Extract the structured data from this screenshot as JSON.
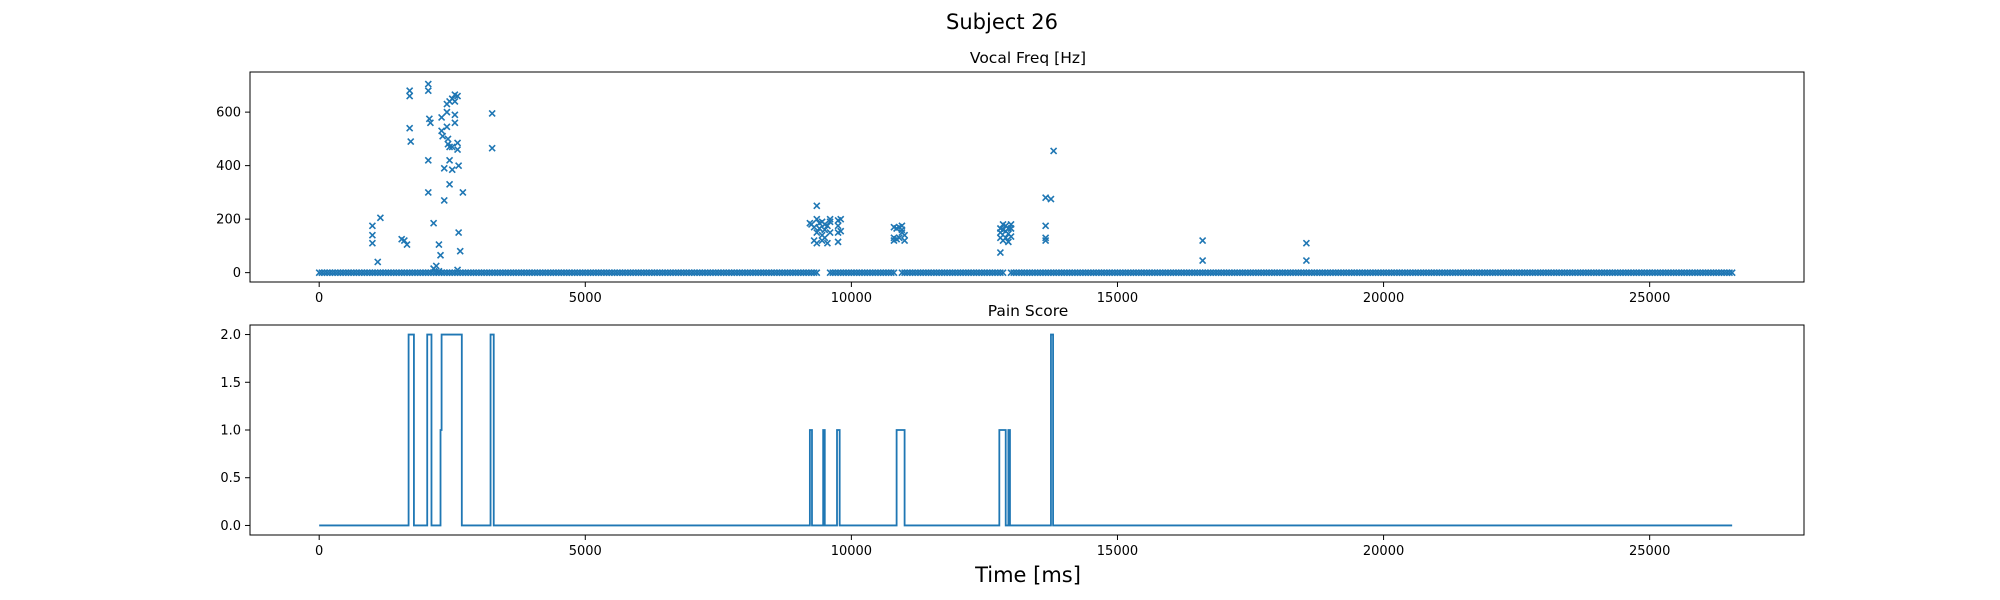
{
  "figure": {
    "suptitle": "Subject 26",
    "xlabel": "Time [ms]"
  },
  "colors": {
    "series": "#1f77b4",
    "axes": "#000000",
    "background": "#ffffff"
  },
  "chart_data": [
    {
      "type": "scatter",
      "title": "Vocal Freq [Hz]",
      "marker": "x",
      "xlim": [
        -1300,
        27900
      ],
      "ylim": [
        -35,
        750
      ],
      "xticks": [
        0,
        5000,
        10000,
        15000,
        20000,
        25000
      ],
      "xticklabels": [
        "0",
        "5000",
        "10000",
        "15000",
        "20000",
        "25000"
      ],
      "yticks": [
        0,
        200,
        400,
        600
      ],
      "yticklabels": [
        "0",
        "200",
        "400",
        "600"
      ],
      "grid": false,
      "baseline": {
        "y": 0,
        "x_start": 0,
        "x_end": 26550,
        "step": 50,
        "gaps": [
          [
            9380,
            9560
          ],
          [
            10820,
            10900
          ],
          [
            12860,
            12950
          ]
        ]
      },
      "points": [
        [
          1000,
          175
        ],
        [
          1000,
          140
        ],
        [
          1000,
          110
        ],
        [
          1100,
          40
        ],
        [
          1150,
          205
        ],
        [
          1550,
          125
        ],
        [
          1600,
          120
        ],
        [
          1650,
          105
        ],
        [
          1700,
          680
        ],
        [
          1700,
          660
        ],
        [
          1700,
          540
        ],
        [
          1720,
          490
        ],
        [
          2050,
          705
        ],
        [
          2050,
          680
        ],
        [
          2070,
          575
        ],
        [
          2090,
          560
        ],
        [
          2050,
          420
        ],
        [
          2050,
          300
        ],
        [
          2150,
          185
        ],
        [
          2200,
          25
        ],
        [
          2150,
          15
        ],
        [
          2250,
          105
        ],
        [
          2280,
          65
        ],
        [
          2250,
          5
        ],
        [
          2300,
          580
        ],
        [
          2300,
          530
        ],
        [
          2320,
          510
        ],
        [
          2350,
          390
        ],
        [
          2350,
          270
        ],
        [
          2400,
          630
        ],
        [
          2400,
          600
        ],
        [
          2400,
          545
        ],
        [
          2420,
          500
        ],
        [
          2420,
          480
        ],
        [
          2450,
          640
        ],
        [
          2450,
          470
        ],
        [
          2450,
          420
        ],
        [
          2450,
          330
        ],
        [
          2500,
          650
        ],
        [
          2500,
          470
        ],
        [
          2500,
          385
        ],
        [
          2550,
          665
        ],
        [
          2550,
          640
        ],
        [
          2550,
          590
        ],
        [
          2550,
          560
        ],
        [
          2600,
          660
        ],
        [
          2600,
          485
        ],
        [
          2600,
          460
        ],
        [
          2620,
          400
        ],
        [
          2620,
          150
        ],
        [
          2650,
          80
        ],
        [
          2700,
          300
        ],
        [
          2600,
          10
        ],
        [
          3250,
          595
        ],
        [
          3250,
          465
        ],
        [
          9220,
          185
        ],
        [
          9250,
          180
        ],
        [
          9300,
          170
        ],
        [
          9300,
          120
        ],
        [
          9350,
          250
        ],
        [
          9350,
          200
        ],
        [
          9350,
          150
        ],
        [
          9350,
          110
        ],
        [
          9400,
          185
        ],
        [
          9400,
          165
        ],
        [
          9450,
          190
        ],
        [
          9450,
          140
        ],
        [
          9450,
          120
        ],
        [
          9500,
          180
        ],
        [
          9500,
          160
        ],
        [
          9500,
          130
        ],
        [
          9550,
          175
        ],
        [
          9550,
          110
        ],
        [
          9600,
          200
        ],
        [
          9600,
          190
        ],
        [
          9600,
          150
        ],
        [
          9750,
          195
        ],
        [
          9750,
          175
        ],
        [
          9750,
          150
        ],
        [
          9750,
          115
        ],
        [
          9800,
          200
        ],
        [
          9800,
          155
        ],
        [
          10800,
          170
        ],
        [
          10800,
          130
        ],
        [
          10800,
          120
        ],
        [
          10850,
          165
        ],
        [
          10850,
          125
        ],
        [
          10900,
          170
        ],
        [
          10900,
          130
        ],
        [
          10950,
          175
        ],
        [
          10950,
          160
        ],
        [
          10950,
          150
        ],
        [
          11000,
          140
        ],
        [
          11000,
          120
        ],
        [
          12800,
          165
        ],
        [
          12800,
          150
        ],
        [
          12800,
          130
        ],
        [
          12800,
          75
        ],
        [
          12850,
          180
        ],
        [
          12850,
          160
        ],
        [
          12850,
          120
        ],
        [
          12900,
          175
        ],
        [
          12900,
          155
        ],
        [
          12900,
          130
        ],
        [
          12950,
          165
        ],
        [
          12950,
          145
        ],
        [
          12950,
          115
        ],
        [
          13000,
          180
        ],
        [
          13000,
          165
        ],
        [
          13000,
          135
        ],
        [
          13650,
          280
        ],
        [
          13650,
          175
        ],
        [
          13650,
          130
        ],
        [
          13650,
          120
        ],
        [
          13750,
          275
        ],
        [
          13800,
          455
        ],
        [
          16600,
          120
        ],
        [
          16600,
          45
        ],
        [
          18550,
          110
        ],
        [
          18550,
          45
        ]
      ]
    },
    {
      "type": "line",
      "title": "Pain Score",
      "drawstyle": "steps",
      "xlim": [
        -1300,
        27900
      ],
      "ylim": [
        -0.1,
        2.1
      ],
      "xticks": [
        0,
        5000,
        10000,
        15000,
        20000,
        25000
      ],
      "xticklabels": [
        "0",
        "5000",
        "10000",
        "15000",
        "20000",
        "25000"
      ],
      "yticks": [
        0,
        0.5,
        1,
        1.5,
        2
      ],
      "yticklabels": [
        "0.0",
        "0.5",
        "1.0",
        "1.5",
        "2.0"
      ],
      "grid": false,
      "x": [
        0,
        1680,
        1680,
        1780,
        1780,
        2030,
        2030,
        2110,
        2110,
        2280,
        2280,
        2300,
        2300,
        2680,
        2680,
        3220,
        3220,
        3280,
        3280,
        9220,
        9220,
        9260,
        9260,
        9470,
        9470,
        9500,
        9500,
        9730,
        9730,
        9780,
        9780,
        10850,
        10850,
        11000,
        11000,
        12780,
        12780,
        12900,
        12900,
        12950,
        12950,
        12980,
        12980,
        13750,
        13750,
        13790,
        13790,
        26550
      ],
      "y": [
        0,
        0,
        2,
        2,
        0,
        0,
        2,
        2,
        0,
        0,
        1,
        1,
        2,
        2,
        0,
        0,
        2,
        2,
        0,
        0,
        1,
        1,
        0,
        0,
        1,
        1,
        0,
        0,
        1,
        1,
        0,
        0,
        1,
        1,
        0,
        0,
        1,
        1,
        0,
        0,
        1,
        1,
        0,
        0,
        2,
        2,
        0,
        0
      ]
    }
  ]
}
